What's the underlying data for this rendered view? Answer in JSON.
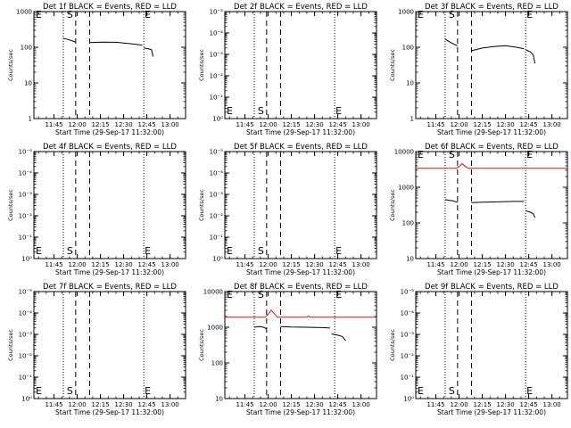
{
  "chart_data": [
    {
      "type": "line",
      "title": "Det 1f BLACK = Events, RED = LLD",
      "ylabel": "Counts/sec",
      "xlabel": "Start Time (29-Sep-17 11:32:00)",
      "yscale": "log",
      "ylim": [
        1,
        1000
      ],
      "ytick_labels": [
        "1",
        "10",
        "100",
        "1000"
      ],
      "xlim": [
        "11:32",
        "13:10"
      ],
      "xtick_labels": [
        "11:45",
        "12:00",
        "12:15",
        "12:30",
        "12:45",
        "13:00"
      ],
      "markers": {
        "E_left": "E",
        "S": "S",
        "E_right": "E"
      },
      "vlines": {
        "dotted": [
          "11:51",
          "12:43"
        ],
        "dashed": [
          "11:59",
          "12:08"
        ]
      },
      "series": [
        {
          "color": "#000000",
          "segments": [
            [
              [
                "11:51",
                180
              ],
              [
                "11:53",
                170
              ],
              [
                "11:55",
                160
              ],
              [
                "11:57",
                150
              ],
              [
                "11:59",
                140
              ]
            ],
            [
              "",
              ""
            ],
            [
              [
                "12:08",
                135
              ],
              [
                "12:15",
                140
              ],
              [
                "12:25",
                138
              ],
              [
                "12:35",
                125
              ],
              [
                "12:42",
                115
              ]
            ],
            [
              [
                "12:43",
                95
              ],
              [
                "12:46",
                90
              ],
              [
                "12:48",
                85
              ],
              [
                "12:49",
                55
              ]
            ]
          ]
        }
      ]
    },
    {
      "type": "line",
      "title": "Det 2f BLACK = Events, RED = LLD",
      "ylabel": "Counts/sec",
      "xlabel": "Start Time (29-Sep-17 11:32:00)",
      "yscale": "log",
      "ylim": [
        1,
        1000000
      ],
      "ytick_labels": [
        "10⁰",
        "10⁻¹",
        "10⁻²",
        "10⁻³",
        "10⁻⁴",
        "10⁻⁵"
      ],
      "xlim": [
        "11:32",
        "13:10"
      ],
      "xtick_labels": [
        "11:45",
        "12:00",
        "12:15",
        "12:30",
        "12:45",
        "13:00"
      ],
      "markers": {
        "E_left": "E",
        "S": "S",
        "E_right": "E"
      },
      "vlines": {
        "dotted": [
          "11:51",
          "12:43"
        ],
        "dashed": [
          "11:59",
          "12:08"
        ]
      },
      "series": []
    },
    {
      "type": "line",
      "title": "Det 3f BLACK = Events, RED = LLD",
      "ylabel": "Counts/sec",
      "xlabel": "Start Time (29-Sep-17 11:32:00)",
      "yscale": "log",
      "ylim": [
        1,
        1000
      ],
      "ytick_labels": [
        "1",
        "10",
        "100",
        "1000"
      ],
      "xlim": [
        "11:32",
        "13:10"
      ],
      "xtick_labels": [
        "11:45",
        "12:00",
        "12:15",
        "12:30",
        "12:45",
        "13:00"
      ],
      "markers": {
        "E_left": "E",
        "S": "S",
        "E_right": "E"
      },
      "vlines": {
        "dotted": [
          "11:51",
          "12:43"
        ],
        "dashed": [
          "11:59",
          "12:08"
        ]
      },
      "series": [
        {
          "color": "#000000",
          "segments": [
            [
              [
                "11:51",
                170
              ],
              [
                "11:54",
                140
              ],
              [
                "11:57",
                120
              ],
              [
                "11:59",
                110
              ]
            ],
            [
              [
                "12:08",
                80
              ],
              [
                "12:15",
                95
              ],
              [
                "12:22",
                105
              ],
              [
                "12:30",
                110
              ],
              [
                "12:37",
                100
              ],
              [
                "12:42",
                90
              ]
            ],
            [
              [
                "12:43",
                85
              ],
              [
                "12:46",
                75
              ],
              [
                "12:48",
                60
              ],
              [
                "12:49",
                35
              ]
            ]
          ]
        }
      ]
    },
    {
      "type": "line",
      "title": "Det 4f BLACK = Events, RED = LLD",
      "ylabel": "Counts/sec",
      "xlabel": "Start Time (29-Sep-17 11:32:00)",
      "yscale": "log",
      "ylim": [
        1,
        1000000
      ],
      "ytick_labels": [
        "10⁰",
        "10⁻¹",
        "10⁻²",
        "10⁻³",
        "10⁻⁴",
        "10⁻⁵"
      ],
      "xlim": [
        "11:32",
        "13:10"
      ],
      "xtick_labels": [
        "11:45",
        "12:00",
        "12:15",
        "12:30",
        "12:45",
        "13:00"
      ],
      "markers": {
        "E_left": "E",
        "S": "S",
        "E_right": "E"
      },
      "vlines": {
        "dotted": [
          "11:51",
          "12:43"
        ],
        "dashed": [
          "11:59",
          "12:08"
        ]
      },
      "series": []
    },
    {
      "type": "line",
      "title": "Det 5f BLACK = Events, RED = LLD",
      "ylabel": "Counts/sec",
      "xlabel": "Start Time (29-Sep-17 11:32:00)",
      "yscale": "log",
      "ylim": [
        1,
        1000000
      ],
      "ytick_labels": [
        "10⁰",
        "10⁻¹",
        "10⁻²",
        "10⁻³",
        "10⁻⁴",
        "10⁻⁵"
      ],
      "xlim": [
        "11:32",
        "13:10"
      ],
      "xtick_labels": [
        "11:45",
        "12:00",
        "12:15",
        "12:30",
        "12:45",
        "13:00"
      ],
      "markers": {
        "E_left": "E",
        "S": "S",
        "E_right": "E"
      },
      "vlines": {
        "dotted": [
          "11:51",
          "12:43"
        ],
        "dashed": [
          "11:59",
          "12:08"
        ]
      },
      "series": []
    },
    {
      "type": "line",
      "title": "Det 6f BLACK = Events, RED = LLD",
      "ylabel": "Counts/sec",
      "xlabel": "Start Time (29-Sep-17 11:32:00)",
      "yscale": "log",
      "ylim": [
        10,
        10000
      ],
      "ytick_labels": [
        "10",
        "100",
        "1000",
        "10000"
      ],
      "xlim": [
        "11:32",
        "13:10"
      ],
      "xtick_labels": [
        "11:45",
        "12:00",
        "12:15",
        "12:30",
        "12:45",
        "13:00"
      ],
      "markers": {
        "E_left": "E",
        "S": "S",
        "E_right": "E"
      },
      "vlines": {
        "dotted": [
          "11:51",
          "12:43"
        ],
        "dashed": [
          "11:59",
          "12:08"
        ]
      },
      "series": [
        {
          "color": "#000000",
          "segments": [
            [
              [
                "11:51",
                450
              ],
              [
                "11:54",
                430
              ],
              [
                "11:56",
                420
              ],
              [
                "11:57",
                400
              ],
              [
                "11:59",
                380
              ]
            ],
            [
              [
                "12:08",
                370
              ],
              [
                "12:15",
                380
              ],
              [
                "12:25",
                390
              ],
              [
                "12:35",
                400
              ],
              [
                "12:42",
                400
              ]
            ],
            [
              [
                "12:43",
                220
              ],
              [
                "12:46",
                200
              ],
              [
                "12:48",
                180
              ],
              [
                "12:49",
                140
              ]
            ]
          ]
        },
        {
          "color": "#e01010",
          "segments": [
            [
              [
                "11:32",
                3400
              ],
              [
                "11:58",
                3400
              ],
              [
                "12:00",
                3800
              ],
              [
                "12:02",
                4600
              ],
              [
                "12:04",
                3800
              ],
              [
                "12:06",
                3400
              ],
              [
                "13:10",
                3400
              ]
            ]
          ]
        }
      ]
    },
    {
      "type": "line",
      "title": "Det 7f BLACK = Events, RED = LLD",
      "ylabel": "Counts/sec",
      "xlabel": "Start Time (29-Sep-17 11:32:00)",
      "yscale": "log",
      "ylim": [
        1,
        1000000
      ],
      "ytick_labels": [
        "10⁰",
        "10⁻¹",
        "10⁻²",
        "10⁻³",
        "10⁻⁴",
        "10⁻⁵"
      ],
      "xlim": [
        "11:32",
        "13:10"
      ],
      "xtick_labels": [
        "11:45",
        "12:00",
        "12:15",
        "12:30",
        "12:45",
        "13:00"
      ],
      "markers": {
        "E_left": "E",
        "S": "S",
        "E_right": "E"
      },
      "vlines": {
        "dotted": [
          "11:51",
          "12:43"
        ],
        "dashed": [
          "11:59",
          "12:08"
        ]
      },
      "series": []
    },
    {
      "type": "line",
      "title": "Det 8f BLACK = Events, RED = LLD",
      "ylabel": "Counts/sec",
      "xlabel": "Start Time (29-Sep-17 11:32:00)",
      "yscale": "log",
      "ylim": [
        10,
        10000
      ],
      "ytick_labels": [
        "10",
        "100",
        "1000",
        "10000"
      ],
      "xlim": [
        "11:32",
        "13:10"
      ],
      "xtick_labels": [
        "11:45",
        "12:00",
        "12:15",
        "12:30",
        "12:45",
        "13:00"
      ],
      "markers": {
        "E_left": "E",
        "S": "S",
        "E_right": "E"
      },
      "vlines": {
        "dotted": [
          "11:51",
          "12:43"
        ],
        "dashed": [
          "11:59",
          "12:08"
        ]
      },
      "series": [
        {
          "color": "#000000",
          "segments": [
            [
              [
                "11:51",
                1000
              ],
              [
                "11:54",
                1050
              ],
              [
                "11:57",
                1000
              ],
              [
                "11:59",
                900
              ]
            ],
            [
              [
                "12:08",
                1050
              ],
              [
                "12:15",
                1020
              ],
              [
                "12:25",
                1000
              ],
              [
                "12:35",
                980
              ],
              [
                "12:40",
                950
              ]
            ],
            [
              [
                "12:41",
                650
              ],
              [
                "12:45",
                600
              ],
              [
                "12:48",
                550
              ],
              [
                "12:50",
                420
              ]
            ]
          ]
        },
        {
          "color": "#e01010",
          "segments": [
            [
              [
                "11:32",
                1900
              ],
              [
                "11:58",
                1900
              ],
              [
                "12:00",
                2300
              ],
              [
                "12:02",
                3000
              ],
              [
                "12:04",
                2400
              ],
              [
                "12:06",
                1900
              ],
              [
                "12:25",
                1900
              ],
              [
                "12:26",
                2050
              ],
              [
                "12:27",
                1900
              ],
              [
                "13:10",
                1900
              ]
            ]
          ]
        }
      ]
    },
    {
      "type": "line",
      "title": "Det 9f BLACK = Events, RED = LLD",
      "ylabel": "Counts/sec",
      "xlabel": "Start Time (29-Sep-17 11:32:00)",
      "yscale": "log",
      "ylim": [
        1,
        1000000
      ],
      "ytick_labels": [
        "10⁰",
        "10⁻¹",
        "10⁻²",
        "10⁻³",
        "10⁻⁴",
        "10⁻⁵"
      ],
      "xlim": [
        "11:32",
        "13:10"
      ],
      "xtick_labels": [
        "11:45",
        "12:00",
        "12:15",
        "12:30",
        "12:45",
        "13:00"
      ],
      "markers": {
        "E_left": "E",
        "S": "S",
        "E_right": "E"
      },
      "vlines": {
        "dotted": [
          "11:51",
          "12:43"
        ],
        "dashed": [
          "11:59",
          "12:08"
        ]
      },
      "series": []
    }
  ]
}
